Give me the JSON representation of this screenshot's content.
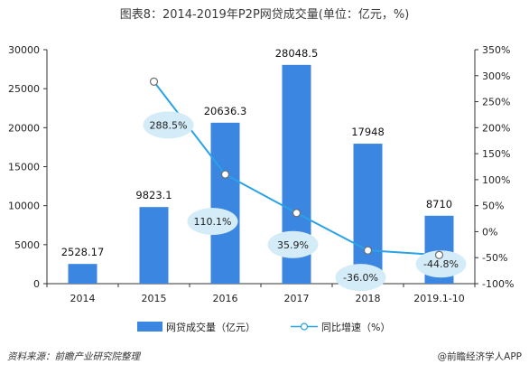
{
  "title": "图表8：2014-2019年P2P网贷成交量(单位：亿元，%)",
  "chart_data": {
    "type": "bar+line",
    "categories": [
      "2014",
      "2015",
      "2016",
      "2017",
      "2018",
      "2019.1-10"
    ],
    "series": [
      {
        "name": "网贷成交量（亿元）",
        "kind": "bar",
        "axis": "left",
        "values": [
          2528.17,
          9823.1,
          20636.3,
          28048.5,
          17948,
          8710
        ],
        "labels": [
          "2528.17",
          "9823.1",
          "20636.3",
          "28048.5",
          "17948",
          "8710"
        ],
        "color": "#3b86e0"
      },
      {
        "name": "同比增速（%）",
        "kind": "line",
        "axis": "right",
        "values": [
          null,
          288.5,
          110.1,
          35.9,
          -36.0,
          -44.8
        ],
        "labels": [
          "",
          "288.5%",
          "110.1%",
          "35.9%",
          "-36.0%",
          "-44.8%"
        ],
        "color": "#29a3e6"
      }
    ],
    "y_left": {
      "min": 0,
      "max": 30000,
      "ticks": [
        "0",
        "5000",
        "10000",
        "15000",
        "20000",
        "25000",
        "30000"
      ]
    },
    "y_right": {
      "min": -100,
      "max": 350,
      "ticks": [
        "-100%",
        "-50%",
        "0%",
        "50%",
        "100%",
        "150%",
        "200%",
        "250%",
        "300%",
        "350%"
      ]
    },
    "grid": false,
    "legend_position": "bottom"
  },
  "legend": {
    "bar": "网贷成交量（亿元）",
    "line": "同比增速（%）"
  },
  "footer": {
    "source": "资料来源：前瞻产业研究院整理",
    "brand": "@前瞻经济学人APP"
  },
  "colors": {
    "bar": "#3b86e0",
    "line": "#29a3e6",
    "bubble": "#d4ecf7",
    "axis": "#333333"
  }
}
